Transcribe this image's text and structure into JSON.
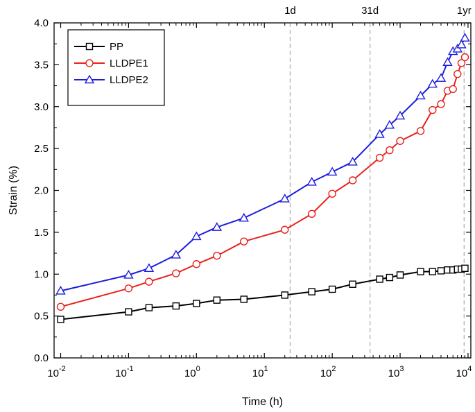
{
  "chart_data": {
    "type": "line",
    "title": "",
    "xlabel": "Time (h)",
    "ylabel": "Strain (%)",
    "xscale": "log",
    "xlim": [
      0.008,
      11000
    ],
    "ylim": [
      0.0,
      4.0
    ],
    "yticks": [
      0.0,
      0.5,
      1.0,
      1.5,
      2.0,
      2.5,
      3.0,
      3.5,
      4.0
    ],
    "ytick_labels": [
      "0.0",
      "0.5",
      "1.0",
      "1.5",
      "2.0",
      "2.5",
      "3.0",
      "3.5",
      "4.0"
    ],
    "xticks": [
      0.01,
      0.1,
      1,
      10,
      100,
      1000,
      10000
    ],
    "xtick_labels": [
      {
        "base": "10",
        "exp": "-2"
      },
      {
        "base": "10",
        "exp": "-1"
      },
      {
        "base": "10",
        "exp": "0"
      },
      {
        "base": "10",
        "exp": "1"
      },
      {
        "base": "10",
        "exp": "2"
      },
      {
        "base": "10",
        "exp": "3"
      },
      {
        "base": "10",
        "exp": "4"
      }
    ],
    "reference_lines": [
      {
        "label": "1d",
        "x": 24
      },
      {
        "label": "31d",
        "x": 360
      },
      {
        "label": "1yr",
        "x": 8760
      }
    ],
    "legend_position": "top-left",
    "series": [
      {
        "name": "PP",
        "color": "#000000",
        "marker": "square",
        "x": [
          0.01,
          0.1,
          0.2,
          0.5,
          1,
          2,
          5,
          20,
          50,
          100,
          200,
          500,
          700,
          1000,
          2000,
          3000,
          4000,
          5000,
          6000,
          7000,
          8000,
          9000
        ],
        "y": [
          0.46,
          0.55,
          0.6,
          0.62,
          0.65,
          0.69,
          0.7,
          0.75,
          0.79,
          0.82,
          0.88,
          0.94,
          0.96,
          0.99,
          1.03,
          1.03,
          1.04,
          1.05,
          1.05,
          1.06,
          1.06,
          1.07
        ]
      },
      {
        "name": "LLDPE1",
        "color": "#e8211b",
        "marker": "circle",
        "x": [
          0.01,
          0.1,
          0.2,
          0.5,
          1,
          2,
          5,
          20,
          50,
          100,
          200,
          500,
          700,
          1000,
          2000,
          3000,
          4000,
          5000,
          6000,
          7000,
          8000,
          9000
        ],
        "y": [
          0.61,
          0.83,
          0.91,
          1.01,
          1.12,
          1.22,
          1.39,
          1.53,
          1.72,
          1.96,
          2.12,
          2.39,
          2.48,
          2.59,
          2.71,
          2.96,
          3.03,
          3.19,
          3.21,
          3.39,
          3.52,
          3.59
        ]
      },
      {
        "name": "LLDPE2",
        "color": "#1c1ce0",
        "marker": "triangle",
        "x": [
          0.01,
          0.1,
          0.2,
          0.5,
          1,
          2,
          5,
          20,
          50,
          100,
          200,
          500,
          700,
          1000,
          2000,
          3000,
          4000,
          5000,
          6000,
          7000,
          8000,
          9000
        ],
        "y": [
          0.8,
          0.99,
          1.07,
          1.23,
          1.45,
          1.56,
          1.67,
          1.9,
          2.1,
          2.22,
          2.34,
          2.67,
          2.78,
          2.89,
          3.13,
          3.27,
          3.34,
          3.53,
          3.66,
          3.69,
          3.74,
          3.82
        ]
      }
    ]
  }
}
